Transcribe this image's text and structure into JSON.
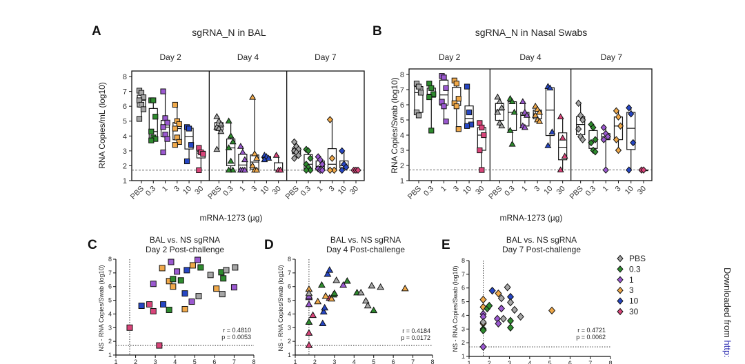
{
  "groups": [
    {
      "label": "PBS",
      "color": "#a6a6a6"
    },
    {
      "label": "0.3",
      "color": "#2e8b2e"
    },
    {
      "label": "1",
      "color": "#9b59d0"
    },
    {
      "label": "3",
      "color": "#f0a94a"
    },
    {
      "label": "10",
      "color": "#2646c4"
    },
    {
      "label": "30",
      "color": "#d9457a"
    }
  ],
  "limit_of_detection": 1.7,
  "footer": {
    "text": "Downloaded from ",
    "link": "http:",
    "link_color": "#2b2bb0"
  },
  "chart_data": [
    {
      "id": "A",
      "type": "box",
      "letter": "A",
      "title": "sgRNA_N in BAL",
      "ylabel": "RNA Copies/mL (log10)",
      "xlabel": "mRNA-1273 (µg)",
      "ylim": [
        1,
        8
      ],
      "yticks": [
        "1",
        "2",
        "3",
        "4",
        "5",
        "6",
        "7",
        "8"
      ],
      "days": [
        {
          "label": "Day 2",
          "marker": "square",
          "values": [
            [
              7.05,
              6.9,
              6.6,
              6.4,
              6.1,
              5.8,
              5.15
            ],
            [
              6.4,
              6.4,
              5.3,
              4.3,
              3.9,
              3.8,
              3.7
            ],
            [
              7.0,
              5.2,
              4.9,
              4.6,
              4.1,
              3.8,
              2.9
            ],
            [
              6.1,
              5.0,
              4.8,
              4.5,
              3.9,
              3.6,
              3.4
            ],
            [
              4.6,
              4.5,
              3.4,
              2.3
            ],
            [
              3.2,
              2.9,
              2.8,
              1.7
            ]
          ]
        },
        {
          "label": "Day 4",
          "marker": "triangle",
          "values": [
            [
              5.3,
              5.0,
              4.8,
              4.6,
              4.5,
              4.3,
              3.1
            ],
            [
              5.0,
              4.0,
              3.6,
              3.2,
              2.3,
              1.7,
              1.7
            ],
            [
              3.3,
              2.9,
              2.4,
              1.7,
              1.7,
              1.7
            ],
            [
              6.6,
              2.8,
              2.5,
              2.0,
              1.7,
              1.7
            ],
            [
              2.7,
              2.6,
              2.5,
              2.4
            ],
            [
              2.7,
              1.7,
              1.7
            ]
          ]
        },
        {
          "label": "Day 7",
          "marker": "diamond",
          "values": [
            [
              3.6,
              3.3,
              3.1,
              3.0,
              2.9,
              2.7,
              2.5
            ],
            [
              3.1,
              3.0,
              2.5,
              2.1,
              1.9,
              1.7,
              1.7
            ],
            [
              2.6,
              2.4,
              2.1,
              1.8,
              1.7,
              1.7
            ],
            [
              5.1,
              2.5,
              1.7,
              1.7
            ],
            [
              3.0,
              2.1,
              1.9,
              1.7
            ],
            [
              1.7,
              1.7,
              1.7
            ]
          ]
        }
      ]
    },
    {
      "id": "B",
      "type": "box",
      "letter": "B",
      "title": "sgRNA_N in Nasal Swabs",
      "ylabel": "RNA Copies/Swab (log10)",
      "xlabel": "mRNA-1273 (µg)",
      "ylim": [
        1,
        8
      ],
      "yticks": [
        "1",
        "2",
        "3",
        "4",
        "5",
        "6",
        "7",
        "8"
      ],
      "days": [
        {
          "label": "Day 2",
          "marker": "square",
          "values": [
            [
              7.4,
              7.2,
              6.8,
              5.5,
              5.3
            ],
            [
              7.4,
              7.1,
              6.7,
              6.5,
              4.3
            ],
            [
              7.9,
              7.8,
              7.1,
              6.2,
              5.9,
              4.9
            ],
            [
              7.6,
              7.4,
              6.4,
              6.1,
              5.9,
              4.4
            ],
            [
              7.2,
              5.5,
              4.7,
              4.6
            ],
            [
              4.8,
              4.5,
              4.0,
              3.0,
              1.7
            ]
          ]
        },
        {
          "label": "Day 4",
          "marker": "triangle",
          "values": [
            [
              6.5,
              6.2,
              5.8,
              5.5,
              4.8,
              4.6
            ],
            [
              6.4,
              6.2,
              5.5,
              4.3,
              3.4
            ],
            [
              6.2,
              5.5,
              5.3,
              4.6,
              4.5
            ],
            [
              5.9,
              5.7,
              5.5,
              5.3,
              5.0,
              4.9
            ],
            [
              7.2,
              7.1,
              4.2,
              3.3
            ],
            [
              5.2,
              3.8,
              2.6,
              1.7
            ]
          ]
        },
        {
          "label": "Day 7",
          "marker": "diamond",
          "values": [
            [
              6.1,
              5.3,
              5.0,
              4.4,
              3.9,
              3.7
            ],
            [
              4.7,
              4.5,
              3.7,
              3.5,
              3.0,
              2.9
            ],
            [
              4.5,
              4.1,
              3.9,
              3.7,
              1.7
            ],
            [
              5.6,
              5.2,
              4.6,
              3.7,
              3.0
            ],
            [
              5.8,
              5.4,
              3.5,
              1.7
            ],
            [
              1.7,
              1.7
            ]
          ]
        }
      ]
    },
    {
      "id": "C",
      "type": "scatter",
      "letter": "C",
      "title": "BAL vs. NS sgRNA",
      "subtitle": "Day 2 Post-challenge",
      "ylabel": "NS - RNA Copies/Swab (log10)",
      "xlim": [
        1,
        8
      ],
      "ylim": [
        1,
        8
      ],
      "marker": "square",
      "xticks": [
        "1",
        "2",
        "3",
        "4",
        "5",
        "6",
        "7",
        "8"
      ],
      "yticks": [
        "1",
        "2",
        "3",
        "4",
        "5",
        "6",
        "7",
        "8"
      ],
      "r": "r = 0.4810",
      "p": "p = 0.0053",
      "points": [
        [
          1.7,
          3.0,
          5
        ],
        [
          3.2,
          1.7,
          5
        ],
        [
          2.7,
          4.7,
          5
        ],
        [
          2.9,
          4.2,
          5
        ],
        [
          2.3,
          4.6,
          4
        ],
        [
          3.4,
          4.7,
          4
        ],
        [
          4.5,
          5.5,
          4
        ],
        [
          4.6,
          7.2,
          4
        ],
        [
          2.9,
          6.2,
          2
        ],
        [
          3.8,
          7.8,
          2
        ],
        [
          4.1,
          7.1,
          2
        ],
        [
          4.85,
          4.9,
          2
        ],
        [
          5.15,
          7.95,
          2
        ],
        [
          7.0,
          5.95,
          2
        ],
        [
          3.35,
          7.35,
          3
        ],
        [
          3.7,
          6.4,
          3
        ],
        [
          3.9,
          6.0,
          3
        ],
        [
          4.5,
          4.35,
          3
        ],
        [
          4.9,
          7.55,
          3
        ],
        [
          6.1,
          5.85,
          3
        ],
        [
          3.7,
          4.3,
          1
        ],
        [
          3.9,
          6.55,
          1
        ],
        [
          4.3,
          6.45,
          1
        ],
        [
          5.3,
          7.4,
          1
        ],
        [
          6.35,
          7.05,
          1
        ],
        [
          6.45,
          6.6,
          1
        ],
        [
          5.2,
          5.3,
          0
        ],
        [
          5.8,
          6.85,
          0
        ],
        [
          6.4,
          5.45,
          0
        ],
        [
          6.6,
          7.2,
          0
        ],
        [
          7.05,
          7.4,
          0
        ]
      ]
    },
    {
      "id": "D",
      "type": "scatter",
      "letter": "D",
      "title": "BAL vs. NS sgRNA",
      "subtitle": "Day 4 Post-challenge",
      "ylabel": "NS - RNA Copies/Swab (log10)",
      "xlim": [
        1,
        8
      ],
      "ylim": [
        1,
        8
      ],
      "marker": "triangle",
      "xticks": [
        "1",
        "2",
        "3",
        "4",
        "5",
        "6",
        "7",
        "8"
      ],
      "yticks": [
        "1",
        "2",
        "3",
        "4",
        "5",
        "6",
        "7",
        "8"
      ],
      "r": "r = 0.4184",
      "p": "p = 0.0172",
      "points": [
        [
          1.7,
          1.7,
          5
        ],
        [
          1.7,
          2.6,
          5
        ],
        [
          1.9,
          3.9,
          5
        ],
        [
          2.75,
          5.15,
          5
        ],
        [
          1.7,
          4.7,
          2
        ],
        [
          1.7,
          5.2,
          2
        ],
        [
          1.7,
          5.3,
          2
        ],
        [
          3.45,
          6.1,
          2
        ],
        [
          1.7,
          5.8,
          3
        ],
        [
          2.15,
          4.9,
          3
        ],
        [
          2.55,
          5.3,
          3
        ],
        [
          2.85,
          5.1,
          3
        ],
        [
          6.6,
          5.85,
          3
        ],
        [
          1.7,
          3.4,
          1
        ],
        [
          2.35,
          6.1,
          1
        ],
        [
          2.95,
          5.4,
          1
        ],
        [
          3.0,
          5.5,
          1
        ],
        [
          3.65,
          6.4,
          1
        ],
        [
          4.15,
          5.55,
          1
        ],
        [
          5.0,
          4.25,
          1
        ],
        [
          2.4,
          3.3,
          4
        ],
        [
          2.45,
          4.15,
          4
        ],
        [
          2.5,
          4.45,
          4
        ],
        [
          2.65,
          6.9,
          4
        ],
        [
          2.75,
          7.2,
          4
        ],
        [
          1.7,
          5.5,
          0
        ],
        [
          3.1,
          6.45,
          0
        ],
        [
          4.35,
          5.55,
          0
        ],
        [
          4.6,
          4.95,
          0
        ],
        [
          4.7,
          4.6,
          0
        ],
        [
          4.9,
          6.05,
          0
        ],
        [
          5.35,
          5.95,
          0
        ]
      ]
    },
    {
      "id": "E",
      "type": "scatter",
      "letter": "E",
      "title": "BAL vs. NS sgRNA",
      "subtitle": "Day 7 Post-challenge",
      "ylabel": "NS - RNA Copies/Swab (log10)",
      "xlim": [
        1,
        8
      ],
      "ylim": [
        1,
        8
      ],
      "marker": "diamond",
      "xticks": [
        "1",
        "2",
        "3",
        "4",
        "5",
        "6",
        "7",
        "8"
      ],
      "yticks": [
        "1",
        "2",
        "3",
        "4",
        "5",
        "6",
        "7",
        "8"
      ],
      "r": "r = 0.4721",
      "p": "p = 0.0062",
      "legend": "right",
      "points": [
        [
          1.7,
          5.15,
          3
        ],
        [
          1.7,
          4.6,
          3
        ],
        [
          1.7,
          3.4,
          3
        ],
        [
          2.45,
          5.6,
          3
        ],
        [
          5.1,
          4.35,
          3
        ],
        [
          1.7,
          4.1,
          2
        ],
        [
          1.7,
          3.9,
          2
        ],
        [
          1.7,
          1.7,
          2
        ],
        [
          2.4,
          3.75,
          2
        ],
        [
          2.45,
          3.4,
          2
        ],
        [
          2.6,
          4.5,
          2
        ],
        [
          1.7,
          3.0,
          1
        ],
        [
          1.7,
          2.9,
          1
        ],
        [
          1.9,
          4.5,
          1
        ],
        [
          2.0,
          4.7,
          1
        ],
        [
          3.05,
          3.6,
          1
        ],
        [
          3.05,
          3.1,
          1
        ],
        [
          2.15,
          5.8,
          4
        ],
        [
          3.05,
          5.35,
          4
        ],
        [
          1.7,
          3.5,
          0
        ],
        [
          2.6,
          5.25,
          0
        ],
        [
          2.7,
          3.75,
          0
        ],
        [
          2.9,
          6.05,
          0
        ],
        [
          3.05,
          4.95,
          0
        ],
        [
          3.25,
          4.4,
          0
        ],
        [
          3.55,
          3.9,
          0
        ]
      ]
    }
  ]
}
